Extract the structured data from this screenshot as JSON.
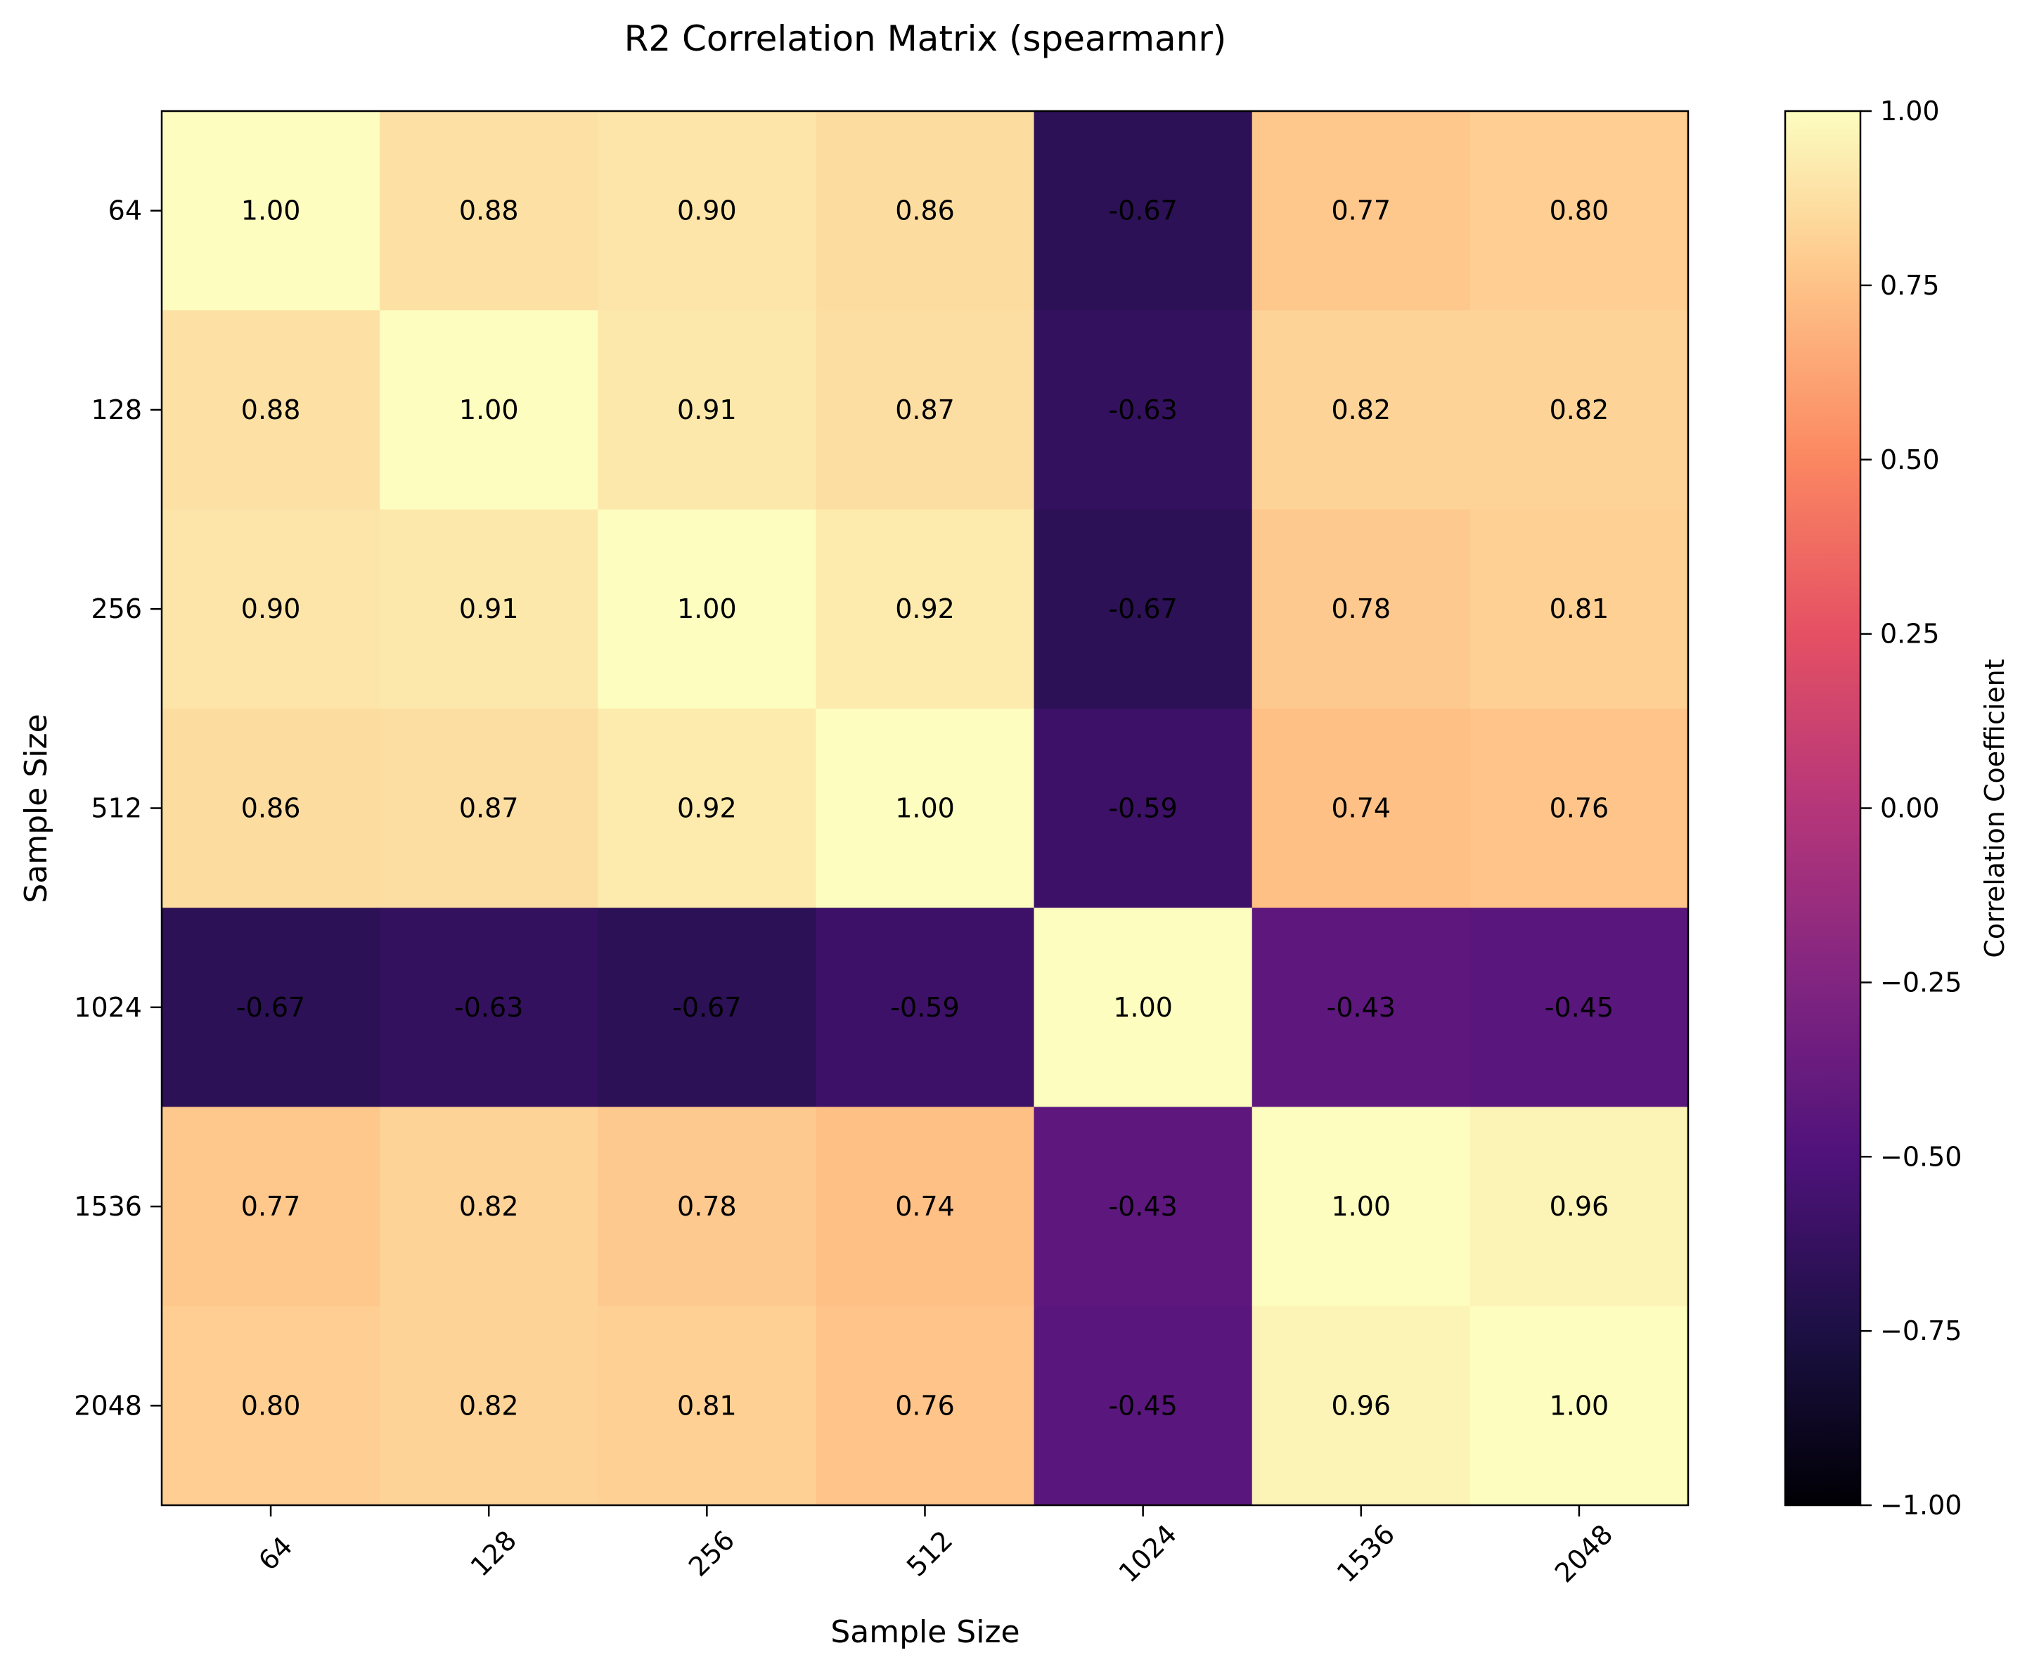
{
  "chart_data": {
    "type": "heatmap",
    "title": "R2 Correlation Matrix (spearmanr)",
    "xlabel": "Sample Size",
    "ylabel": "Sample Size",
    "x_categories": [
      "64",
      "128",
      "256",
      "512",
      "1024",
      "1536",
      "2048"
    ],
    "y_categories": [
      "64",
      "128",
      "256",
      "512",
      "1024",
      "1536",
      "2048"
    ],
    "values": [
      [
        1.0,
        0.88,
        0.9,
        0.86,
        -0.67,
        0.77,
        0.8
      ],
      [
        0.88,
        1.0,
        0.91,
        0.87,
        -0.63,
        0.82,
        0.82
      ],
      [
        0.9,
        0.91,
        1.0,
        0.92,
        -0.67,
        0.78,
        0.81
      ],
      [
        0.86,
        0.87,
        0.92,
        1.0,
        -0.59,
        0.74,
        0.76
      ],
      [
        -0.67,
        -0.63,
        -0.67,
        -0.59,
        1.0,
        -0.43,
        -0.45
      ],
      [
        0.77,
        0.82,
        0.78,
        0.74,
        -0.43,
        1.0,
        0.96
      ],
      [
        0.8,
        0.82,
        0.81,
        0.76,
        -0.45,
        0.96,
        1.0
      ]
    ],
    "value_format": "0.00",
    "colormap": "magma",
    "colorbar": {
      "label": "Correlation Coefficient",
      "range": [
        -1.0,
        1.0
      ],
      "ticks": [
        1.0,
        0.75,
        0.5,
        0.25,
        0.0,
        -0.25,
        -0.5,
        -0.75,
        -1.0
      ],
      "tick_labels": [
        "1.00",
        "0.75",
        "0.50",
        "0.25",
        "0.00",
        "−0.25",
        "−0.50",
        "−0.75",
        "−1.00"
      ]
    },
    "grid": false
  }
}
